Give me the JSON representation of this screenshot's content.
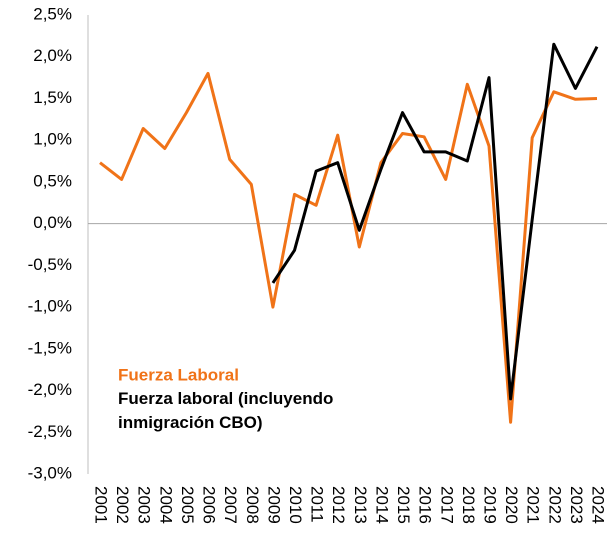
{
  "chart_data": {
    "type": "line",
    "categories": [
      "2001",
      "2002",
      "2003",
      "2004",
      "2005",
      "2006",
      "2007",
      "2008",
      "2009",
      "2010",
      "2011",
      "2012",
      "2013",
      "2014",
      "2015",
      "2016",
      "2017",
      "2018",
      "2019",
      "2020",
      "2021",
      "2022",
      "2023",
      "2024"
    ],
    "series": [
      {
        "name": "Fuerza Laboral",
        "color": "#f07318",
        "values": [
          0.73,
          0.53,
          1.14,
          0.9,
          1.33,
          1.8,
          0.77,
          0.47,
          -1.0,
          0.35,
          0.22,
          1.06,
          -0.28,
          0.73,
          1.08,
          1.04,
          0.53,
          1.67,
          0.93,
          -2.38,
          1.03,
          1.58,
          1.49,
          1.5
        ]
      },
      {
        "name": "Fuerza laboral (incluyendo inmigración CBO)",
        "color": "#000000",
        "values": [
          null,
          null,
          null,
          null,
          null,
          null,
          null,
          null,
          -0.71,
          -0.32,
          0.63,
          0.73,
          -0.08,
          0.65,
          1.33,
          0.86,
          0.86,
          0.75,
          1.75,
          -2.1,
          0.05,
          2.15,
          1.62,
          2.12
        ]
      }
    ],
    "ylim": [
      -3.0,
      2.5
    ],
    "yticks": [
      {
        "value": -3.0,
        "label": "-3,0%"
      },
      {
        "value": -2.5,
        "label": "-2,5%"
      },
      {
        "value": -2.0,
        "label": "-2,0%"
      },
      {
        "value": -1.5,
        "label": "-1,5%"
      },
      {
        "value": -1.0,
        "label": "-1,0%"
      },
      {
        "value": -0.5,
        "label": "-0,5%"
      },
      {
        "value": 0,
        "label": "0,0%"
      },
      {
        "value": 0.5,
        "label": "0,5%"
      },
      {
        "value": 1.0,
        "label": "1,0%"
      },
      {
        "value": 1.5,
        "label": "1,5%"
      },
      {
        "value": 2.0,
        "label": "2,0%"
      },
      {
        "value": 2.5,
        "label": "2,5%"
      }
    ]
  }
}
